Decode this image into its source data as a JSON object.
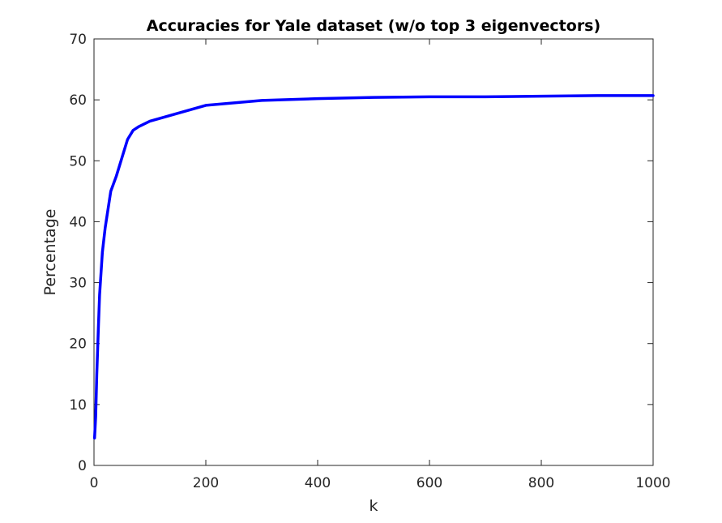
{
  "chart_data": {
    "type": "line",
    "title": "Accuracies for Yale dataset (w/o top 3 eigenvectors)",
    "xlabel": "k",
    "ylabel": "Percentage",
    "xlim": [
      0,
      1000
    ],
    "ylim": [
      0,
      70
    ],
    "xticks": [
      "0",
      "200",
      "400",
      "600",
      "800",
      "1000"
    ],
    "yticks": [
      "0",
      "10",
      "20",
      "30",
      "40",
      "50",
      "60",
      "70"
    ],
    "grid": false,
    "series": [
      {
        "color": "#0000ff",
        "x": [
          1,
          3,
          5,
          8,
          10,
          15,
          20,
          25,
          30,
          40,
          50,
          60,
          70,
          80,
          100,
          150,
          200,
          300,
          400,
          500,
          600,
          700,
          800,
          900,
          1000
        ],
        "y": [
          4.5,
          8,
          15,
          23,
          28,
          35,
          39,
          42,
          45,
          47.5,
          50.5,
          53.5,
          55,
          55.6,
          56.5,
          57.8,
          59.1,
          59.9,
          60.2,
          60.4,
          60.5,
          60.5,
          60.6,
          60.7,
          60.7
        ]
      }
    ]
  }
}
